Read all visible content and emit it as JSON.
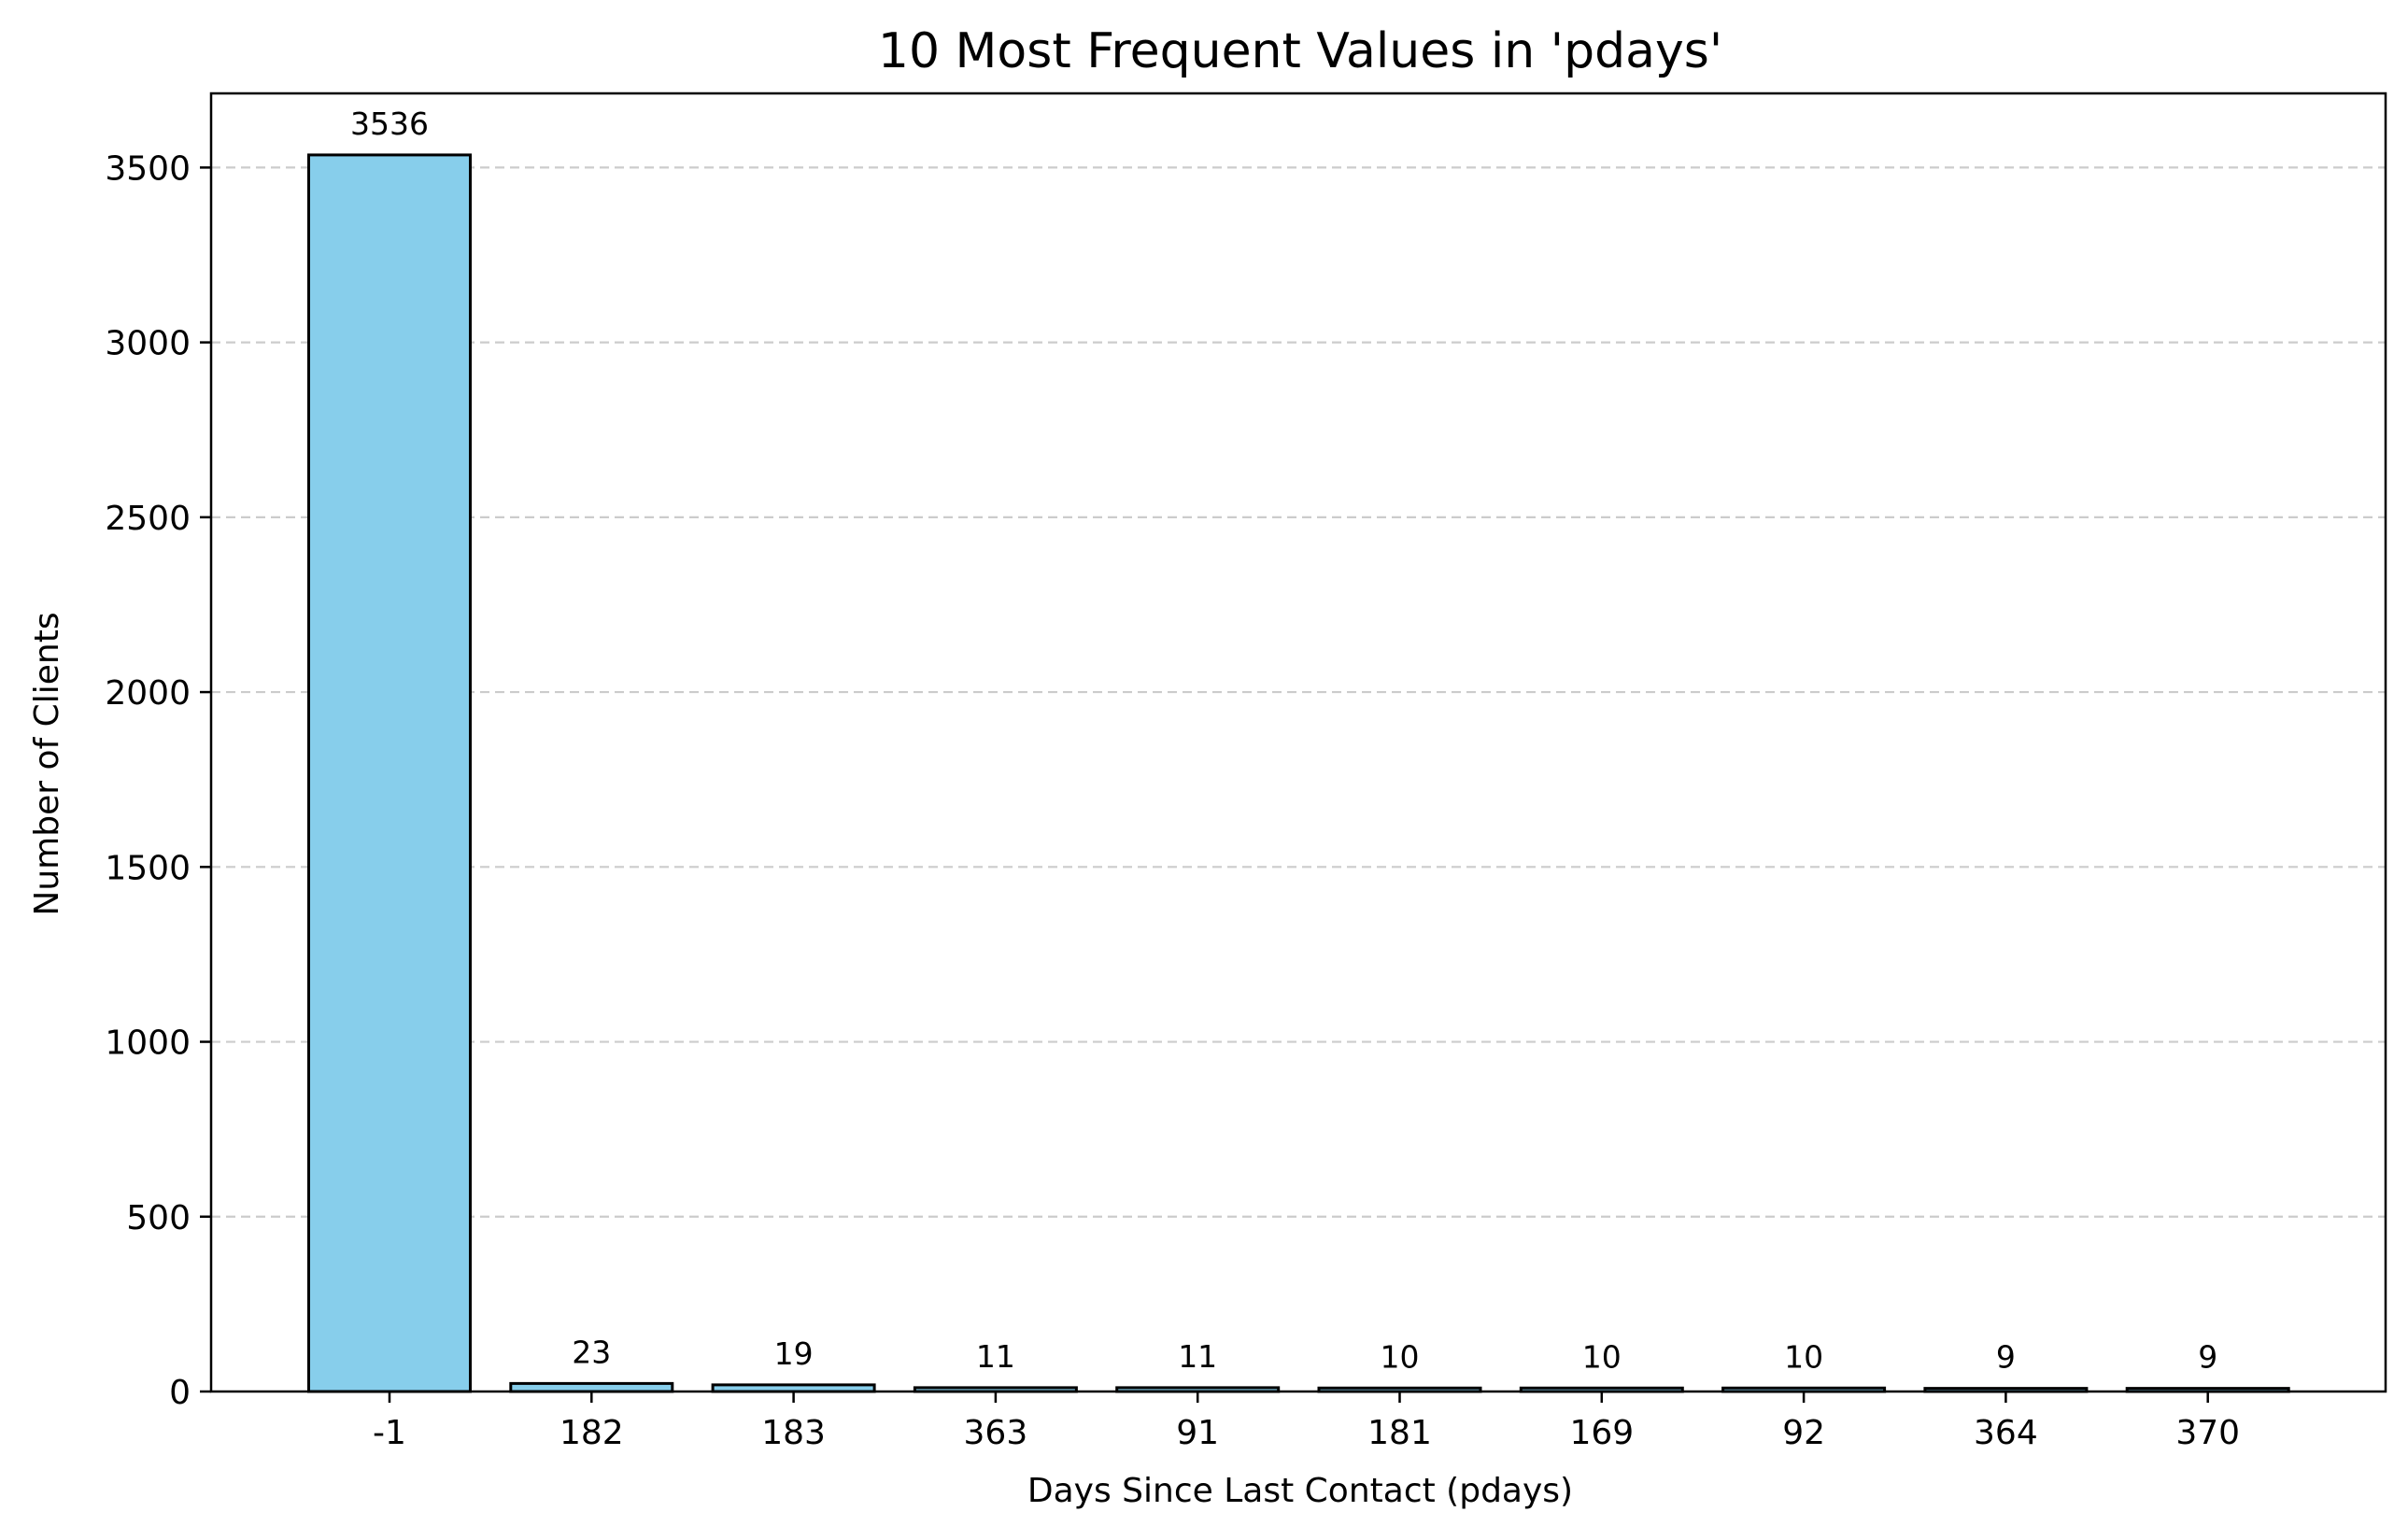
{
  "chart_data": {
    "type": "bar",
    "title": "10 Most Frequent Values in 'pdays'",
    "xlabel": "Days Since Last Contact (pdays)",
    "ylabel": "Number of Clients",
    "categories": [
      "-1",
      "182",
      "183",
      "363",
      "91",
      "181",
      "169",
      "92",
      "364",
      "370"
    ],
    "values": [
      3536,
      23,
      19,
      11,
      11,
      10,
      10,
      10,
      9,
      9
    ],
    "data_labels": [
      "3536",
      "23",
      "19",
      "11",
      "11",
      "10",
      "10",
      "10",
      "9",
      "9"
    ],
    "ylim": [
      0,
      3712
    ],
    "yticks": [
      0,
      500,
      1000,
      1500,
      2000,
      2500,
      3000,
      3500
    ],
    "ytick_labels": [
      "0",
      "500",
      "1000",
      "1500",
      "2000",
      "2500",
      "3000",
      "3500"
    ],
    "grid": "y-axis dashed",
    "legend": "none"
  },
  "colors": {
    "bar_fill": "#87CEEB",
    "bar_edge": "#000000",
    "grid": "#cccccc",
    "axes": "#000000"
  }
}
